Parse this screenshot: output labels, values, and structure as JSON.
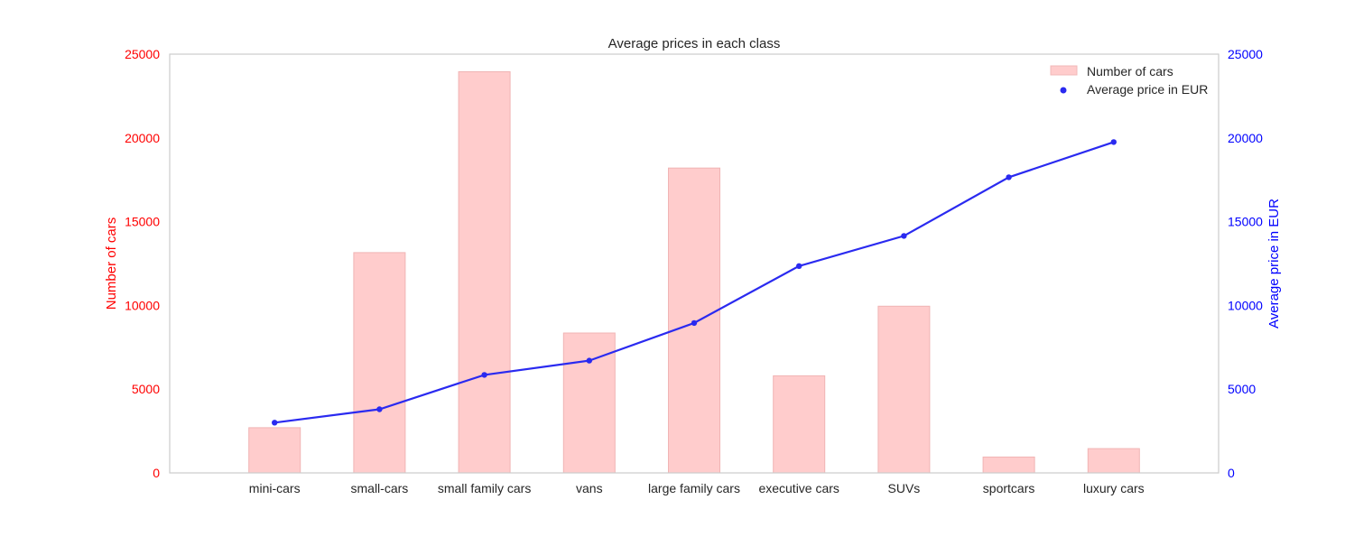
{
  "chart_data": {
    "type": "bar",
    "title": "Average prices in each class",
    "categories": [
      "mini-cars",
      "small-cars",
      "small family cars",
      "vans",
      "large family cars",
      "executive cars",
      "SUVs",
      "sportcars",
      "luxury cars"
    ],
    "series": [
      {
        "name": "Number of cars",
        "type": "bar",
        "axis": "left",
        "color": "#ffcccc",
        "values": [
          2700,
          13150,
          23950,
          8350,
          18200,
          5800,
          9950,
          950,
          1450
        ]
      },
      {
        "name": "Average price in EUR",
        "type": "line",
        "axis": "right",
        "color": "#2a2af0",
        "values": [
          3000,
          3800,
          5850,
          6700,
          8950,
          12350,
          14150,
          17650,
          19750
        ]
      }
    ],
    "ylabel_left": "Number of cars",
    "ylabel_right": "Average price in EUR",
    "ylim_left": [
      0,
      25000
    ],
    "ylim_right": [
      0,
      25000
    ],
    "yticks_left": [
      0,
      5000,
      10000,
      15000,
      20000,
      25000
    ],
    "yticks_right": [
      0,
      5000,
      10000,
      15000,
      20000,
      25000
    ],
    "left_axis_color": "#ff0000",
    "right_axis_color": "#0000ff",
    "grid": false,
    "legend_position": "top-right"
  }
}
